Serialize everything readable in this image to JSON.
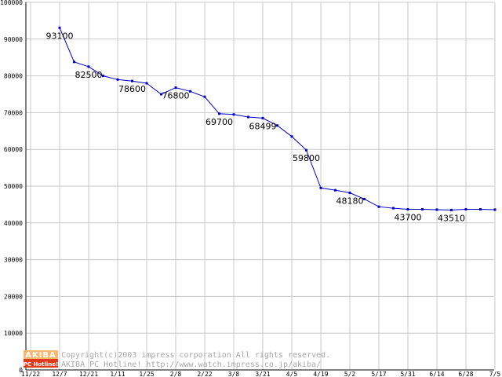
{
  "chart_data": {
    "type": "line",
    "title": "",
    "xlabel": "",
    "ylabel": "",
    "ylim": [
      0,
      100000
    ],
    "y_ticks": [
      0,
      10000,
      20000,
      30000,
      40000,
      50000,
      60000,
      70000,
      80000,
      90000,
      100000
    ],
    "x_tick_labels": [
      "11/22",
      "12/7",
      "12/21",
      "1/11",
      "1/25",
      "2/8",
      "2/22",
      "3/8",
      "3/21",
      "4/5",
      "4/19",
      "5/2",
      "5/17",
      "5/31",
      "6/14",
      "6/28",
      "7/5"
    ],
    "grid": true,
    "legend": "none",
    "series": [
      {
        "color": "#0000cc",
        "values": [
          {
            "x": 1.0,
            "y": 93100,
            "label": "93100"
          },
          {
            "x": 1.5,
            "y": 83800
          },
          {
            "x": 2.0,
            "y": 82500,
            "label": "82500"
          },
          {
            "x": 2.5,
            "y": 80000
          },
          {
            "x": 3.0,
            "y": 79000
          },
          {
            "x": 3.5,
            "y": 78600,
            "label": "78600"
          },
          {
            "x": 4.0,
            "y": 78000
          },
          {
            "x": 4.5,
            "y": 75000
          },
          {
            "x": 5.0,
            "y": 76800,
            "label": "76800"
          },
          {
            "x": 5.5,
            "y": 75800
          },
          {
            "x": 6.0,
            "y": 74300
          },
          {
            "x": 6.5,
            "y": 69700,
            "label": "69700"
          },
          {
            "x": 7.0,
            "y": 69500
          },
          {
            "x": 7.5,
            "y": 68800
          },
          {
            "x": 8.0,
            "y": 68499,
            "label": "68499"
          },
          {
            "x": 8.5,
            "y": 66500
          },
          {
            "x": 9.0,
            "y": 63500
          },
          {
            "x": 9.5,
            "y": 59800,
            "label": "59800"
          },
          {
            "x": 10.0,
            "y": 49500
          },
          {
            "x": 10.5,
            "y": 48900
          },
          {
            "x": 11.0,
            "y": 48180,
            "label": "48180"
          },
          {
            "x": 11.5,
            "y": 46500
          },
          {
            "x": 12.0,
            "y": 44400
          },
          {
            "x": 12.5,
            "y": 44000
          },
          {
            "x": 13.0,
            "y": 43700,
            "label": "43700"
          },
          {
            "x": 13.5,
            "y": 43700
          },
          {
            "x": 14.0,
            "y": 43600
          },
          {
            "x": 14.5,
            "y": 43510,
            "label": "43510"
          },
          {
            "x": 15.0,
            "y": 43700
          },
          {
            "x": 15.5,
            "y": 43700
          },
          {
            "x": 16.0,
            "y": 43600
          }
        ]
      }
    ]
  },
  "watermark": {
    "logo_top": "AKIBA",
    "logo_bottom": "PC Hotline!",
    "line1": "Copyright(c)2003 impress corporation All rights reserved.",
    "line2": "AKIBA PC Hotline!  http://www.watch.impress.co.jp/akiba/"
  },
  "colors": {
    "line": "#0000cc",
    "grid": "#c8c8c8",
    "logo_orange": "#f6b870",
    "logo_red": "#e03a1a"
  }
}
